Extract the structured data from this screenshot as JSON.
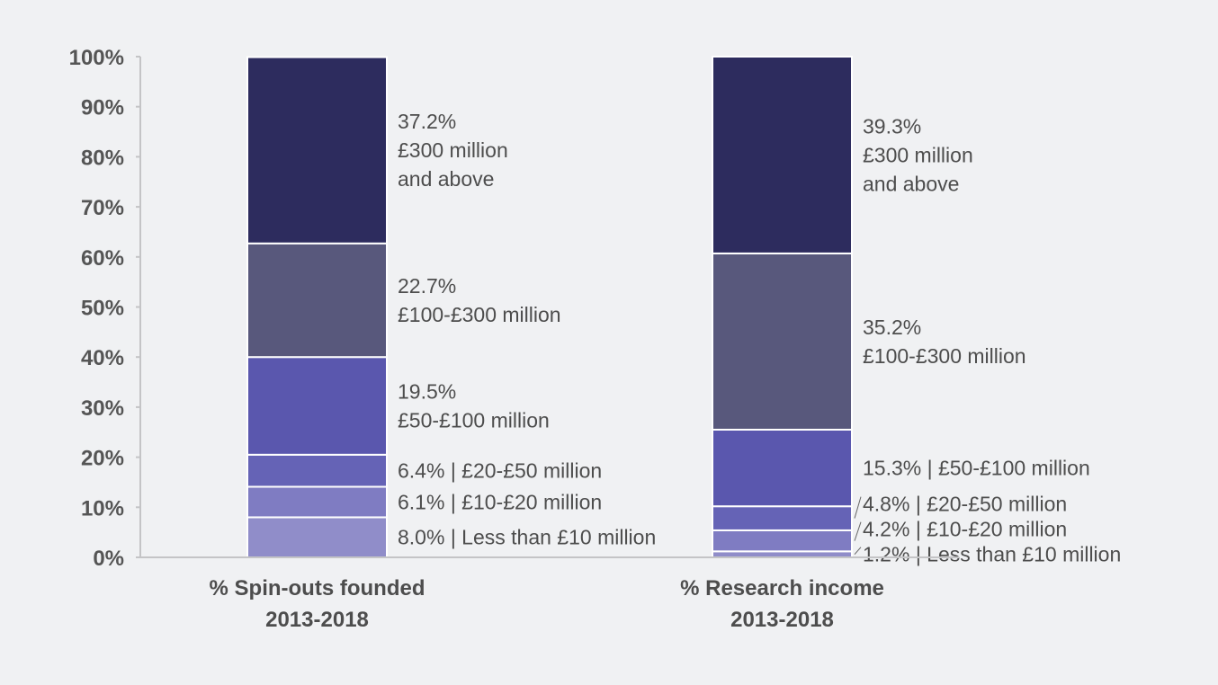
{
  "chart_data": {
    "type": "bar",
    "stacked": true,
    "title": "",
    "xlabel": "",
    "ylabel": "",
    "ylim": [
      0,
      100
    ],
    "y_ticks": [
      "0%",
      "10%",
      "20%",
      "30%",
      "40%",
      "50%",
      "60%",
      "70%",
      "80%",
      "90%",
      "100%"
    ],
    "y_tick_values": [
      0,
      10,
      20,
      30,
      40,
      50,
      60,
      70,
      80,
      90,
      100
    ],
    "grid": false,
    "legend": "none (inline labels to the right of each bar)",
    "categories": [
      [
        "% Spin-outs founded",
        "2013-2018"
      ],
      [
        "% Research income",
        "2013-2018"
      ]
    ],
    "series": [
      {
        "name": "Less than £10 million",
        "color": "#908dc9",
        "values": [
          8.0,
          1.2
        ]
      },
      {
        "name": "£10-£20 million",
        "color": "#7f7cc2",
        "values": [
          6.1,
          4.2
        ]
      },
      {
        "name": "£20-£50 million",
        "color": "#6563b6",
        "values": [
          6.4,
          4.8
        ]
      },
      {
        "name": "£50-£100 million",
        "color": "#5a57ae",
        "values": [
          19.5,
          15.3
        ]
      },
      {
        "name": "£100-£300 million",
        "color": "#58587c",
        "values": [
          22.7,
          35.2
        ]
      },
      {
        "name": "£300 million and above",
        "color": "#2d2c5e",
        "values": [
          37.2,
          39.3
        ]
      }
    ],
    "labels": [
      [
        [
          "8.0% | Less than £10 million"
        ],
        [
          "6.1% | £10-£20 million"
        ],
        [
          "6.4% | £20-£50 million"
        ],
        [
          "19.5%",
          "£50-£100 million"
        ],
        [
          "22.7%",
          "£100-£300 million"
        ],
        [
          "37.2%",
          "£300 million",
          "and above"
        ]
      ],
      [
        [
          "1.2% | Less than £10 million"
        ],
        [
          "4.2% | £10-£20 million"
        ],
        [
          "4.8% | £20-£50 million"
        ],
        [
          "15.3% | £50-£100 million"
        ],
        [
          "35.2%",
          "£100-£300 million"
        ],
        [
          "39.3%",
          "£300 million",
          "and above"
        ]
      ]
    ]
  }
}
